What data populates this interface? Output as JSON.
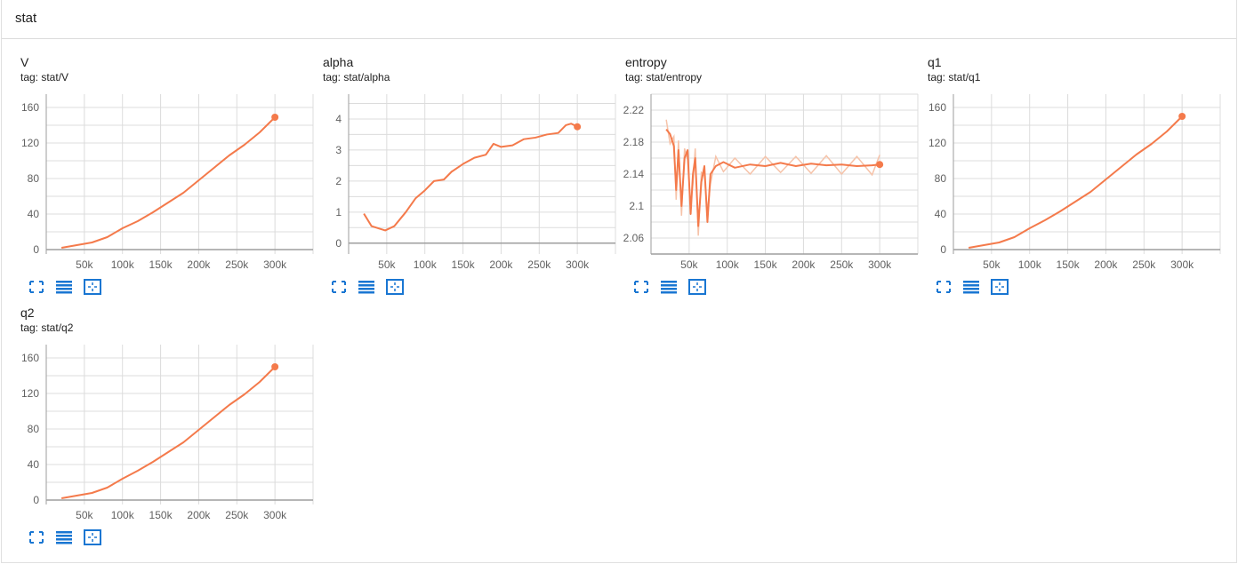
{
  "header": {
    "title": "stat"
  },
  "colors": {
    "line": "#f47a4b",
    "raw": "#f6c3a9",
    "grid": "#dcdcdc",
    "axis": "#9e9e9e",
    "icon": "#1976d2"
  },
  "icons": {
    "fullscreen": "fullscreen-icon",
    "lines": "toggle-lines-icon",
    "fit": "fit-domain-icon"
  },
  "cards": [
    {
      "title": "V",
      "tag": "tag: stat/V",
      "chart_data": {
        "type": "line",
        "x_ticks": [
          "50k",
          "100k",
          "150k",
          "200k",
          "250k",
          "300k"
        ],
        "y_ticks": [
          "0",
          "40",
          "80",
          "120",
          "160"
        ],
        "xlim": [
          0,
          350000
        ],
        "ylim": [
          -5,
          175
        ],
        "series": [
          {
            "values": [
              [
                20000,
                2
              ],
              [
                40000,
                5
              ],
              [
                60000,
                8
              ],
              [
                80000,
                14
              ],
              [
                100000,
                24
              ],
              [
                120000,
                32
              ],
              [
                140000,
                42
              ],
              [
                160000,
                53
              ],
              [
                180000,
                64
              ],
              [
                200000,
                78
              ],
              [
                220000,
                92
              ],
              [
                240000,
                106
              ],
              [
                260000,
                118
              ],
              [
                280000,
                132
              ],
              [
                300000,
                149
              ]
            ]
          }
        ]
      }
    },
    {
      "title": "alpha",
      "tag": "tag: stat/alpha",
      "chart_data": {
        "type": "line",
        "x_ticks": [
          "50k",
          "100k",
          "150k",
          "200k",
          "250k",
          "300k"
        ],
        "y_ticks": [
          "0",
          "1",
          "2",
          "3",
          "4"
        ],
        "xlim": [
          0,
          350000
        ],
        "ylim": [
          -0.35,
          4.8
        ],
        "series": [
          {
            "values": [
              [
                20000,
                0.95
              ],
              [
                30000,
                0.55
              ],
              [
                40000,
                0.47
              ],
              [
                48000,
                0.41
              ],
              [
                60000,
                0.55
              ],
              [
                75000,
                1.0
              ],
              [
                88000,
                1.45
              ],
              [
                100000,
                1.7
              ],
              [
                112000,
                2.0
              ],
              [
                125000,
                2.05
              ],
              [
                135000,
                2.3
              ],
              [
                150000,
                2.55
              ],
              [
                165000,
                2.75
              ],
              [
                180000,
                2.85
              ],
              [
                190000,
                3.2
              ],
              [
                200000,
                3.1
              ],
              [
                215000,
                3.15
              ],
              [
                230000,
                3.35
              ],
              [
                245000,
                3.4
              ],
              [
                260000,
                3.5
              ],
              [
                275000,
                3.55
              ],
              [
                285000,
                3.8
              ],
              [
                292000,
                3.85
              ],
              [
                300000,
                3.75
              ]
            ]
          }
        ]
      }
    },
    {
      "title": "entropy",
      "tag": "tag: stat/entropy",
      "chart_data": {
        "type": "line",
        "x_ticks": [
          "50k",
          "100k",
          "150k",
          "200k",
          "250k",
          "300k"
        ],
        "y_ticks": [
          "2.06",
          "2.1",
          "2.14",
          "2.18",
          "2.22"
        ],
        "xlim": [
          0,
          350000
        ],
        "ylim": [
          2.04,
          2.24
        ],
        "series": [
          {
            "values": [
              [
                20000,
                2.196
              ],
              [
                25000,
                2.19
              ],
              [
                30000,
                2.175
              ],
              [
                33000,
                2.12
              ],
              [
                36000,
                2.17
              ],
              [
                40000,
                2.1
              ],
              [
                44000,
                2.16
              ],
              [
                48000,
                2.17
              ],
              [
                52000,
                2.09
              ],
              [
                55000,
                2.14
              ],
              [
                58000,
                2.16
              ],
              [
                62000,
                2.075
              ],
              [
                66000,
                2.13
              ],
              [
                70000,
                2.15
              ],
              [
                74000,
                2.08
              ],
              [
                78000,
                2.14
              ],
              [
                85000,
                2.15
              ],
              [
                95000,
                2.155
              ],
              [
                110000,
                2.148
              ],
              [
                130000,
                2.152
              ],
              [
                150000,
                2.15
              ],
              [
                170000,
                2.154
              ],
              [
                190000,
                2.15
              ],
              [
                210000,
                2.153
              ],
              [
                230000,
                2.151
              ],
              [
                250000,
                2.152
              ],
              [
                270000,
                2.15
              ],
              [
                290000,
                2.151
              ],
              [
                300000,
                2.152
              ]
            ]
          }
        ]
      }
    },
    {
      "title": "q1",
      "tag": "tag: stat/q1",
      "chart_data": {
        "type": "line",
        "x_ticks": [
          "50k",
          "100k",
          "150k",
          "200k",
          "250k",
          "300k"
        ],
        "y_ticks": [
          "0",
          "40",
          "80",
          "120",
          "160"
        ],
        "xlim": [
          0,
          350000
        ],
        "ylim": [
          -5,
          175
        ],
        "series": [
          {
            "values": [
              [
                20000,
                2
              ],
              [
                40000,
                5
              ],
              [
                60000,
                8
              ],
              [
                80000,
                14
              ],
              [
                100000,
                24
              ],
              [
                120000,
                33
              ],
              [
                140000,
                43
              ],
              [
                160000,
                54
              ],
              [
                180000,
                65
              ],
              [
                200000,
                79
              ],
              [
                220000,
                93
              ],
              [
                240000,
                107
              ],
              [
                260000,
                119
              ],
              [
                280000,
                133
              ],
              [
                300000,
                150
              ]
            ]
          }
        ]
      }
    },
    {
      "title": "q2",
      "tag": "tag: stat/q2",
      "chart_data": {
        "type": "line",
        "x_ticks": [
          "50k",
          "100k",
          "150k",
          "200k",
          "250k",
          "300k"
        ],
        "y_ticks": [
          "0",
          "40",
          "80",
          "120",
          "160"
        ],
        "xlim": [
          0,
          350000
        ],
        "ylim": [
          -5,
          175
        ],
        "series": [
          {
            "values": [
              [
                20000,
                2
              ],
              [
                40000,
                5
              ],
              [
                60000,
                8
              ],
              [
                80000,
                14
              ],
              [
                100000,
                24
              ],
              [
                120000,
                33
              ],
              [
                140000,
                43
              ],
              [
                160000,
                54
              ],
              [
                180000,
                65
              ],
              [
                200000,
                79
              ],
              [
                220000,
                93
              ],
              [
                240000,
                107
              ],
              [
                260000,
                119
              ],
              [
                280000,
                133
              ],
              [
                300000,
                150
              ]
            ]
          }
        ]
      }
    }
  ]
}
